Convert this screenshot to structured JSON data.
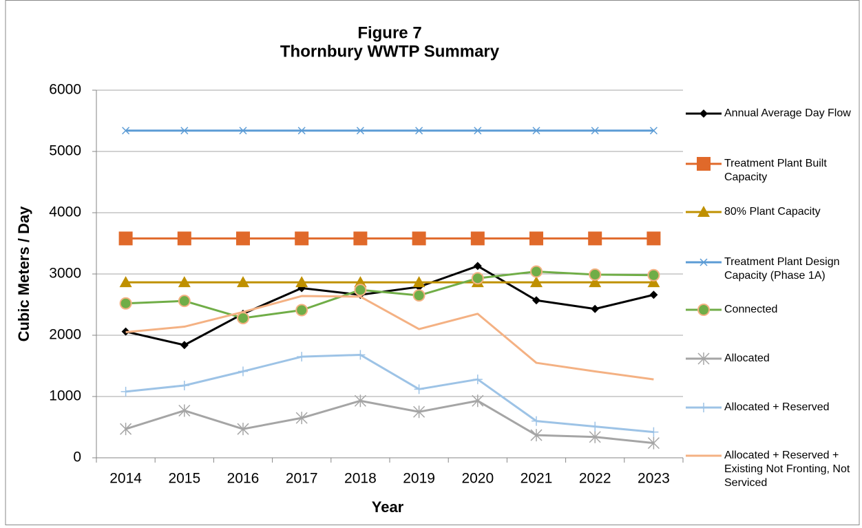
{
  "chart_data": {
    "type": "line",
    "title": "Figure 7",
    "subtitle": "Thornbury WWTP Summary",
    "x_label": "Year",
    "y_label": "Cubic Meters / Day",
    "categories": [
      "2014",
      "2015",
      "2016",
      "2017",
      "2018",
      "2019",
      "2020",
      "2021",
      "2022",
      "2023"
    ],
    "ylim": [
      0,
      6000
    ],
    "yticks": [
      0,
      1000,
      2000,
      3000,
      4000,
      5000,
      6000
    ],
    "grid": true,
    "legend": "right",
    "series": [
      {
        "name": "Annual Average Day Flow",
        "color": "#000000",
        "marker": "diamond",
        "values": [
          2060,
          1840,
          2350,
          2770,
          2660,
          2790,
          3130,
          2570,
          2430,
          2660
        ]
      },
      {
        "name": "Treatment Plant Built Capacity",
        "color": "#e0692a",
        "marker": "square",
        "values": [
          3580,
          3580,
          3580,
          3580,
          3580,
          3580,
          3580,
          3580,
          3580,
          3580
        ]
      },
      {
        "name": "80% Plant Capacity",
        "color": "#bf9000",
        "marker": "triangle",
        "values": [
          2864,
          2864,
          2864,
          2864,
          2864,
          2864,
          2864,
          2864,
          2864,
          2864
        ]
      },
      {
        "name": "Treatment Plant Design Capacity (Phase 1A)",
        "color": "#5b9bd5",
        "marker": "x",
        "values": [
          5340,
          5340,
          5340,
          5340,
          5340,
          5340,
          5340,
          5340,
          5340,
          5340
        ]
      },
      {
        "name": "Connected",
        "color": "#70ad47",
        "marker": "circle",
        "values": [
          2520,
          2560,
          2280,
          2410,
          2740,
          2650,
          2930,
          3040,
          2990,
          2980
        ]
      },
      {
        "name": "Allocated",
        "color": "#a5a5a5",
        "marker": "star",
        "values": [
          470,
          770,
          470,
          650,
          930,
          750,
          930,
          370,
          340,
          240
        ]
      },
      {
        "name": "Allocated + Reserved",
        "color": "#9dc3e6",
        "marker": "plus",
        "values": [
          1080,
          1180,
          1410,
          1650,
          1680,
          1120,
          1280,
          600,
          510,
          420
        ]
      },
      {
        "name": "Allocated + Reserved + Existing Not Fronting, Not Serviced",
        "color": "#f4b183",
        "marker": "none",
        "values": [
          2050,
          2140,
          2380,
          2640,
          2630,
          2100,
          2350,
          1550,
          1410,
          1280
        ]
      }
    ]
  }
}
